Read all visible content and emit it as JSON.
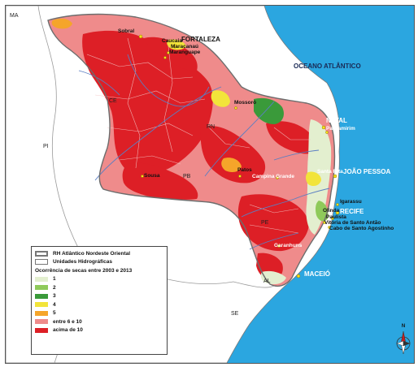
{
  "states": {
    "ma": "MA",
    "ce": "CE",
    "pi": "PI",
    "rn": "RN",
    "pb": "PB",
    "pe": "PE",
    "al": "AL",
    "se": "SE"
  },
  "ocean_label": "OCEANO ATLÂNTICO",
  "capitals": {
    "fortaleza": "FORTALEZA",
    "natal": "NATAL",
    "joao_pessoa": "JOÃO PESSOA",
    "recife": "RECIFE",
    "maceio": "MACEIÓ"
  },
  "cities": {
    "sobral": "Sobral",
    "caucaia": "Caucaia",
    "maracanau": "Maracanaú",
    "maranguape": "Maranguape",
    "mossoro": "Mossoró",
    "parnamirim": "Parnamirim",
    "patos": "Patos",
    "campina_grande": "Campina Grande",
    "santa_rita": "Santa Rita",
    "sousa": "Sousa",
    "igarassu": "Igarassu",
    "olinda": "Olinda",
    "paulista": "Paulista",
    "vitoria": "Vitória de Santo Antão",
    "cabo": "Cabo de Santo Agostinho",
    "garanhuns": "Garanhuns"
  },
  "legend": {
    "boundary_label": "RH Atlântico Nordeste Oriental",
    "units_label": "Unidades Hidrográficas",
    "title": "Ocorrência de secas entre 2003 e 2013",
    "classes": [
      {
        "label": "1",
        "color": "#e3efcf"
      },
      {
        "label": "2",
        "color": "#8fca5a"
      },
      {
        "label": "3",
        "color": "#3a9a3a"
      },
      {
        "label": "4",
        "color": "#f2e43a"
      },
      {
        "label": "5",
        "color": "#f5a52a"
      },
      {
        "label": "entre 6 e 10",
        "color": "#ef8b8b"
      },
      {
        "label": "acima de 10",
        "color": "#dd1f26"
      }
    ]
  },
  "compass_label": "N",
  "colors": {
    "ocean": "#2ba6e0",
    "outside": "#ffffff",
    "rivers": "#5b7ec2",
    "roads": "#c9c9c9"
  }
}
